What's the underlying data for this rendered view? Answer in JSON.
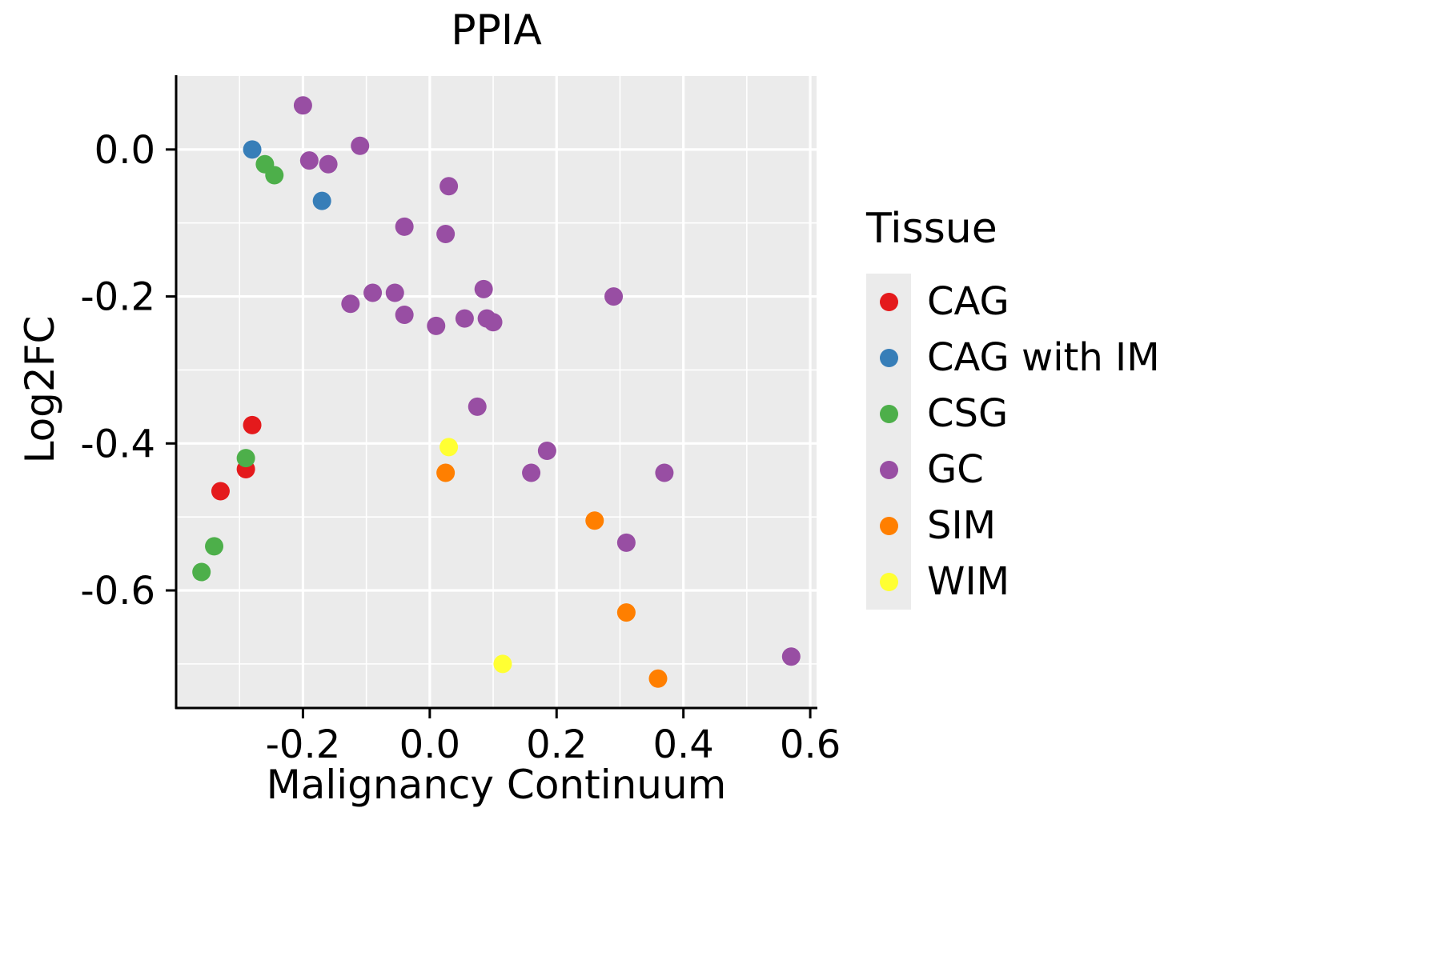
{
  "chart": {
    "title": "PPIA",
    "xlabel": "Malignancy Continuum",
    "ylabel": "Log2FC",
    "legend_title": "Tissue"
  },
  "chart_data": {
    "type": "scatter",
    "title": "PPIA",
    "xlabel": "Malignancy Continuum",
    "ylabel": "Log2FC",
    "legend_title": "Tissue",
    "legend_position": "right",
    "grid": true,
    "panel_background": "#EBEBEB",
    "grid_color": "#FFFFFF",
    "axis_color": "#000000",
    "xlim": [
      -0.4,
      0.61
    ],
    "ylim": [
      -0.76,
      0.1
    ],
    "x_ticks": [
      -0.2,
      0.0,
      0.2,
      0.4,
      0.6
    ],
    "x_tick_labels": [
      "-0.2",
      "0.0",
      "0.2",
      "0.4",
      "0.6"
    ],
    "y_ticks": [
      0.0,
      -0.2,
      -0.4,
      -0.6
    ],
    "y_tick_labels": [
      "0.0",
      "-0.2",
      "-0.4",
      "-0.6"
    ],
    "x_minor_ticks": [
      -0.3,
      -0.1,
      0.1,
      0.3,
      0.5
    ],
    "y_minor_ticks": [
      -0.1,
      -0.3,
      -0.5,
      -0.7
    ],
    "point_radius": 11.5,
    "series": [
      {
        "name": "CAG",
        "color": "#E41A1C",
        "points": [
          [
            -0.28,
            -0.375
          ],
          [
            -0.29,
            -0.435
          ],
          [
            -0.33,
            -0.465
          ]
        ]
      },
      {
        "name": "CAG with IM",
        "color": "#377EB8",
        "points": [
          [
            -0.28,
            0.0
          ],
          [
            -0.17,
            -0.07
          ]
        ]
      },
      {
        "name": "CSG",
        "color": "#4DAF4A",
        "points": [
          [
            -0.26,
            -0.02
          ],
          [
            -0.245,
            -0.035
          ],
          [
            -0.29,
            -0.42
          ],
          [
            -0.34,
            -0.54
          ],
          [
            -0.36,
            -0.575
          ]
        ]
      },
      {
        "name": "GC",
        "color": "#984EA3",
        "points": [
          [
            -0.2,
            0.06
          ],
          [
            -0.19,
            -0.015
          ],
          [
            -0.16,
            -0.02
          ],
          [
            -0.11,
            0.005
          ],
          [
            0.03,
            -0.05
          ],
          [
            -0.04,
            -0.105
          ],
          [
            0.025,
            -0.115
          ],
          [
            -0.125,
            -0.21
          ],
          [
            -0.09,
            -0.195
          ],
          [
            -0.055,
            -0.195
          ],
          [
            -0.04,
            -0.225
          ],
          [
            0.01,
            -0.24
          ],
          [
            0.055,
            -0.23
          ],
          [
            0.085,
            -0.19
          ],
          [
            0.09,
            -0.23
          ],
          [
            0.1,
            -0.235
          ],
          [
            0.29,
            -0.2
          ],
          [
            0.075,
            -0.35
          ],
          [
            0.185,
            -0.41
          ],
          [
            0.16,
            -0.44
          ],
          [
            0.37,
            -0.44
          ],
          [
            0.31,
            -0.535
          ],
          [
            0.57,
            -0.69
          ]
        ]
      },
      {
        "name": "SIM",
        "color": "#FF7F00",
        "points": [
          [
            0.025,
            -0.44
          ],
          [
            0.26,
            -0.505
          ],
          [
            0.31,
            -0.63
          ],
          [
            0.36,
            -0.72
          ]
        ]
      },
      {
        "name": "WIM",
        "color": "#FFFF33",
        "points": [
          [
            0.03,
            -0.405
          ],
          [
            0.115,
            -0.7
          ]
        ]
      }
    ]
  }
}
